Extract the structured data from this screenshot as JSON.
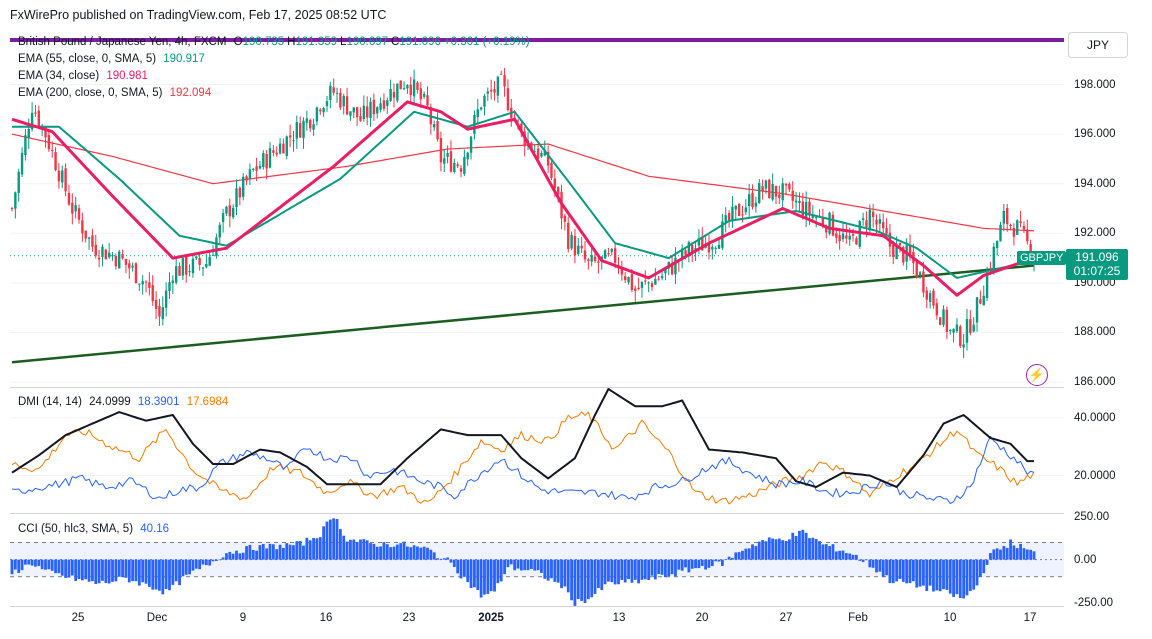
{
  "header": {
    "publisher": "FxWirePro published on TradingView.com, Feb 17, 2025 08:52 UTC"
  },
  "currency_button": "JPY",
  "price_tag": {
    "price": "191.096",
    "countdown": "01:07:25",
    "symbol": "GBPJPY"
  },
  "legend": {
    "main": "British Pound / Japanese Yen, 4h, FXCM",
    "ohlc": [
      {
        "k": "O",
        "v": "190.735"
      },
      {
        "k": "H",
        "v": "191.359"
      },
      {
        "k": "L",
        "v": "190.697"
      },
      {
        "k": "C",
        "v": "191.096"
      },
      {
        "k": "",
        "v": "+0.361 (+0.19%)"
      }
    ],
    "ema55": {
      "label": "EMA (55, close, 0, SMA, 5)",
      "value": "190.917"
    },
    "ema34": {
      "label": "EMA (34, close)",
      "value": "190.981"
    },
    "ema200": {
      "label": "EMA (200, close, 0, SMA, 5)",
      "value": "192.094"
    },
    "dmi": {
      "label": "DMI (14, 14)",
      "adx": "24.0999",
      "plus": "18.3901",
      "minus": "17.6984"
    },
    "cci": {
      "label": "CCI (50, hlc3, SMA, 5)",
      "value": "40.16"
    }
  },
  "colors": {
    "up": "#089981",
    "down": "#f23645",
    "ema55": "#089981",
    "ema34": "#e91e63",
    "ema200": "#f23645",
    "trend": "#1b5e20",
    "purple": "#7b1fa2",
    "dmi_plus": "#2962ff",
    "dmi_minus": "#f57c00",
    "adx": "#131722",
    "cci": "#2962ff"
  },
  "chart_data": [
    {
      "type": "candlestick",
      "ylim": [
        185.8,
        200.2
      ],
      "yticks": [
        "198.000",
        "196.000",
        "194.000",
        "192.000",
        "190.000",
        "188.000",
        "186.000"
      ],
      "x_labels": [
        "25",
        "Dec",
        "9",
        "16",
        "23",
        "2025",
        "13",
        "20",
        "27",
        "Feb",
        "10",
        "17"
      ],
      "anchors": [
        [
          0,
          193.0
        ],
        [
          6,
          197.2
        ],
        [
          10,
          196.0
        ],
        [
          18,
          193.0
        ],
        [
          24,
          191.5
        ],
        [
          32,
          191.0
        ],
        [
          40,
          190.0
        ],
        [
          44,
          188.6
        ],
        [
          48,
          190.5
        ],
        [
          58,
          190.8
        ],
        [
          64,
          192.8
        ],
        [
          72,
          194.5
        ],
        [
          82,
          195.8
        ],
        [
          90,
          196.8
        ],
        [
          92,
          197.3
        ],
        [
          96,
          197.7
        ],
        [
          104,
          196.6
        ],
        [
          112,
          197.6
        ],
        [
          118,
          198.2
        ],
        [
          124,
          197.0
        ],
        [
          128,
          195.0
        ],
        [
          134,
          194.8
        ],
        [
          140,
          197.3
        ],
        [
          146,
          198.0
        ],
        [
          152,
          196.0
        ],
        [
          160,
          194.8
        ],
        [
          166,
          191.8
        ],
        [
          172,
          190.7
        ],
        [
          180,
          191.0
        ],
        [
          186,
          189.7
        ],
        [
          194,
          190.3
        ],
        [
          202,
          191.3
        ],
        [
          210,
          191.8
        ],
        [
          216,
          192.8
        ],
        [
          224,
          193.8
        ],
        [
          230,
          193.6
        ],
        [
          238,
          192.8
        ],
        [
          244,
          192.4
        ],
        [
          250,
          191.5
        ],
        [
          256,
          192.8
        ],
        [
          262,
          191.5
        ],
        [
          268,
          191.0
        ],
        [
          274,
          189.5
        ],
        [
          280,
          188.0
        ],
        [
          284,
          187.8
        ],
        [
          288,
          189.0
        ],
        [
          292,
          190.8
        ],
        [
          296,
          192.6
        ],
        [
          300,
          192.2
        ],
        [
          305,
          191.1
        ]
      ],
      "ema34_anchors": [
        [
          0,
          196.6
        ],
        [
          12,
          196.1
        ],
        [
          30,
          193.5
        ],
        [
          48,
          191.0
        ],
        [
          64,
          191.4
        ],
        [
          96,
          194.7
        ],
        [
          118,
          197.3
        ],
        [
          128,
          196.9
        ],
        [
          136,
          196.2
        ],
        [
          150,
          196.6
        ],
        [
          164,
          193.2
        ],
        [
          176,
          190.9
        ],
        [
          190,
          190.2
        ],
        [
          208,
          191.6
        ],
        [
          230,
          193.0
        ],
        [
          244,
          192.2
        ],
        [
          260,
          191.9
        ],
        [
          272,
          190.7
        ],
        [
          282,
          189.5
        ],
        [
          290,
          190.3
        ],
        [
          305,
          191.0
        ]
      ],
      "ema55_anchors": [
        [
          0,
          196.3
        ],
        [
          14,
          196.3
        ],
        [
          32,
          194.2
        ],
        [
          50,
          191.9
        ],
        [
          64,
          191.5
        ],
        [
          98,
          194.2
        ],
        [
          120,
          196.9
        ],
        [
          136,
          196.3
        ],
        [
          150,
          196.9
        ],
        [
          166,
          194.1
        ],
        [
          180,
          191.6
        ],
        [
          196,
          191.0
        ],
        [
          214,
          192.5
        ],
        [
          234,
          192.9
        ],
        [
          258,
          192.1
        ],
        [
          270,
          191.4
        ],
        [
          282,
          190.2
        ],
        [
          305,
          190.9
        ]
      ],
      "ema200_anchors": [
        [
          0,
          196.0
        ],
        [
          30,
          195.1
        ],
        [
          60,
          194.0
        ],
        [
          100,
          194.7
        ],
        [
          130,
          195.4
        ],
        [
          160,
          195.6
        ],
        [
          190,
          194.3
        ],
        [
          230,
          193.6
        ],
        [
          260,
          192.9
        ],
        [
          290,
          192.2
        ],
        [
          305,
          192.1
        ]
      ],
      "trendline": [
        [
          0,
          186.8
        ],
        [
          305,
          190.7
        ]
      ]
    },
    {
      "type": "line",
      "ylim": [
        7,
        50
      ],
      "yticks": [
        "40.0000",
        "20.0000"
      ],
      "adx_anchors": [
        [
          0,
          21
        ],
        [
          8,
          27
        ],
        [
          16,
          34
        ],
        [
          24,
          38
        ],
        [
          32,
          42
        ],
        [
          40,
          39
        ],
        [
          48,
          41
        ],
        [
          54,
          31
        ],
        [
          60,
          24
        ],
        [
          66,
          24
        ],
        [
          74,
          29
        ],
        [
          80,
          28
        ],
        [
          88,
          23
        ],
        [
          94,
          17
        ],
        [
          102,
          17
        ],
        [
          110,
          17
        ],
        [
          118,
          26
        ],
        [
          128,
          36
        ],
        [
          136,
          34
        ],
        [
          146,
          34
        ],
        [
          152,
          26
        ],
        [
          160,
          19
        ],
        [
          168,
          26
        ],
        [
          174,
          41
        ],
        [
          178,
          50
        ],
        [
          186,
          44
        ],
        [
          194,
          44
        ],
        [
          200,
          46
        ],
        [
          208,
          29
        ],
        [
          218,
          28
        ],
        [
          228,
          26
        ],
        [
          234,
          18
        ],
        [
          240,
          16
        ],
        [
          248,
          21
        ],
        [
          256,
          20
        ],
        [
          264,
          16
        ],
        [
          272,
          27
        ],
        [
          278,
          38
        ],
        [
          284,
          41
        ],
        [
          288,
          37
        ],
        [
          292,
          33
        ],
        [
          298,
          31
        ],
        [
          303,
          25
        ]
      ],
      "plus_anchors": [
        [
          0,
          14
        ],
        [
          8,
          16
        ],
        [
          14,
          17
        ],
        [
          20,
          19
        ],
        [
          28,
          16
        ],
        [
          36,
          18
        ],
        [
          44,
          12
        ],
        [
          50,
          15
        ],
        [
          56,
          16
        ],
        [
          62,
          24
        ],
        [
          70,
          28
        ],
        [
          76,
          26
        ],
        [
          82,
          22
        ],
        [
          88,
          30
        ],
        [
          94,
          26
        ],
        [
          102,
          26
        ],
        [
          106,
          20
        ],
        [
          114,
          22
        ],
        [
          122,
          18
        ],
        [
          128,
          16
        ],
        [
          132,
          13
        ],
        [
          140,
          21
        ],
        [
          146,
          26
        ],
        [
          152,
          20
        ],
        [
          158,
          15
        ],
        [
          166,
          14
        ],
        [
          176,
          14
        ],
        [
          184,
          12
        ],
        [
          192,
          16
        ],
        [
          200,
          18
        ],
        [
          208,
          23
        ],
        [
          214,
          25
        ],
        [
          220,
          21
        ],
        [
          228,
          17
        ],
        [
          236,
          18
        ],
        [
          244,
          14
        ],
        [
          250,
          14
        ],
        [
          260,
          18
        ],
        [
          266,
          14
        ],
        [
          274,
          12
        ],
        [
          280,
          11
        ],
        [
          286,
          16
        ],
        [
          292,
          33
        ],
        [
          300,
          25
        ],
        [
          304,
          20
        ]
      ],
      "minus_anchors": [
        [
          0,
          24
        ],
        [
          8,
          22
        ],
        [
          16,
          34
        ],
        [
          22,
          35
        ],
        [
          30,
          30
        ],
        [
          38,
          26
        ],
        [
          46,
          36
        ],
        [
          54,
          22
        ],
        [
          62,
          15
        ],
        [
          70,
          12
        ],
        [
          78,
          23
        ],
        [
          86,
          21
        ],
        [
          94,
          14
        ],
        [
          100,
          18
        ],
        [
          108,
          13
        ],
        [
          116,
          16
        ],
        [
          124,
          10
        ],
        [
          132,
          20
        ],
        [
          140,
          32
        ],
        [
          146,
          29
        ],
        [
          152,
          34
        ],
        [
          160,
          32
        ],
        [
          166,
          40
        ],
        [
          172,
          41
        ],
        [
          180,
          29
        ],
        [
          188,
          38
        ],
        [
          196,
          28
        ],
        [
          204,
          14
        ],
        [
          212,
          11
        ],
        [
          220,
          13
        ],
        [
          228,
          17
        ],
        [
          236,
          20
        ],
        [
          242,
          25
        ],
        [
          250,
          20
        ],
        [
          256,
          13
        ],
        [
          264,
          20
        ],
        [
          270,
          24
        ],
        [
          276,
          30
        ],
        [
          282,
          36
        ],
        [
          288,
          27
        ],
        [
          294,
          23
        ],
        [
          300,
          17
        ],
        [
          304,
          20
        ]
      ]
    },
    {
      "type": "bar",
      "ylim": [
        -270,
        260
      ],
      "yticks": [
        "250.00",
        "0.00",
        "-250.00"
      ],
      "bands": [
        100,
        -100
      ],
      "anchors": [
        [
          0,
          -80
        ],
        [
          6,
          -20
        ],
        [
          10,
          -70
        ],
        [
          18,
          -110
        ],
        [
          26,
          -140
        ],
        [
          34,
          -110
        ],
        [
          42,
          -160
        ],
        [
          46,
          -190
        ],
        [
          52,
          -100
        ],
        [
          60,
          -10
        ],
        [
          64,
          40
        ],
        [
          72,
          70
        ],
        [
          80,
          80
        ],
        [
          86,
          90
        ],
        [
          92,
          150
        ],
        [
          96,
          260
        ],
        [
          100,
          120
        ],
        [
          108,
          90
        ],
        [
          116,
          90
        ],
        [
          124,
          60
        ],
        [
          132,
          -30
        ],
        [
          134,
          -90
        ],
        [
          140,
          -210
        ],
        [
          144,
          -190
        ],
        [
          148,
          -40
        ],
        [
          156,
          -70
        ],
        [
          164,
          -150
        ],
        [
          168,
          -250
        ],
        [
          172,
          -230
        ],
        [
          178,
          -140
        ],
        [
          186,
          -130
        ],
        [
          196,
          -90
        ],
        [
          204,
          -50
        ],
        [
          212,
          -20
        ],
        [
          218,
          60
        ],
        [
          224,
          110
        ],
        [
          230,
          120
        ],
        [
          236,
          160
        ],
        [
          242,
          90
        ],
        [
          250,
          40
        ],
        [
          256,
          -30
        ],
        [
          262,
          -120
        ],
        [
          268,
          -140
        ],
        [
          274,
          -170
        ],
        [
          280,
          -200
        ],
        [
          284,
          -230
        ],
        [
          288,
          -150
        ],
        [
          292,
          30
        ],
        [
          298,
          100
        ],
        [
          305,
          40
        ]
      ]
    }
  ]
}
